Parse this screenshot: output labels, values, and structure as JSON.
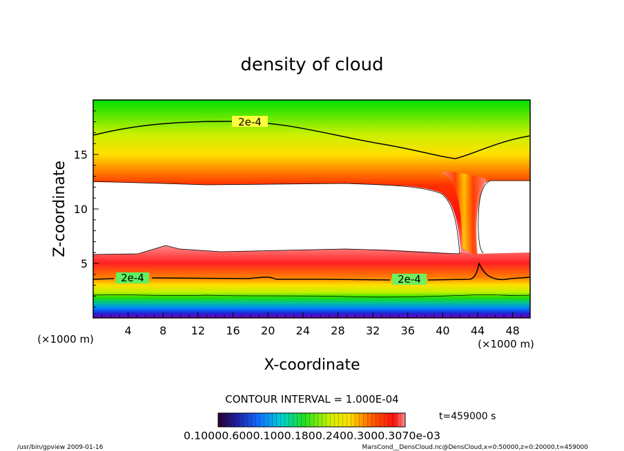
{
  "chart_data": {
    "type": "heatmap",
    "title": "density of cloud",
    "xlabel": "X-coordinate",
    "ylabel": "Z-coordinate",
    "x_unit_label_left": "(×1000 m)",
    "x_unit_label_right": "(×1000 m)",
    "xlim": [
      0,
      50
    ],
    "ylim": [
      0,
      20
    ],
    "x_ticks": [
      4,
      8,
      12,
      16,
      20,
      24,
      28,
      32,
      36,
      40,
      44,
      48
    ],
    "y_ticks": [
      5,
      10,
      15
    ],
    "contour_line_labels": [
      "2e-4",
      "2e-4",
      "2e-4"
    ],
    "contour_interval_text": "CONTOUR INTERVAL = 1.000E-04",
    "time_text": "t=459000 s",
    "colorbar_labels": "0.10000.6000.1000.1800.2400.3000.3070e-03",
    "colors": {
      "high": "#ff0000",
      "mid": "#ffff00",
      "low": "#00ff00",
      "lowest": "#7a00b4"
    }
  },
  "footer": {
    "left": "/usr/bin/gpview   2009-01-16",
    "right": "MarsCond__DensCloud.nc@DensCloud,x=0:50000,z=0:20000,t=459000"
  }
}
